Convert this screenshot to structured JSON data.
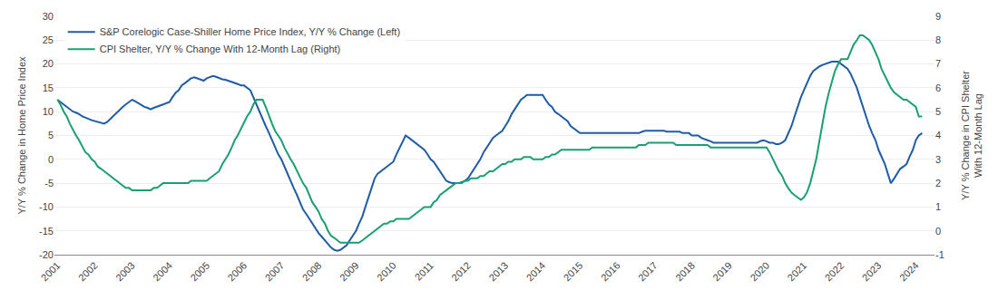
{
  "chart_data": {
    "type": "line",
    "ylabel": "Y/Y % Change in Home Price Index",
    "y2label": "Y/Y % Change in CPI Shelter\nWith 12-Month Lag",
    "x": [
      2001.0,
      2001.08,
      2001.17,
      2001.25,
      2001.33,
      2001.42,
      2001.5,
      2001.58,
      2001.67,
      2001.75,
      2001.83,
      2001.92,
      2002.0,
      2002.08,
      2002.17,
      2002.25,
      2002.33,
      2002.42,
      2002.5,
      2002.58,
      2002.67,
      2002.75,
      2002.83,
      2002.92,
      2003.0,
      2003.08,
      2003.17,
      2003.25,
      2003.33,
      2003.42,
      2003.5,
      2003.58,
      2003.67,
      2003.75,
      2003.83,
      2003.92,
      2004.0,
      2004.08,
      2004.17,
      2004.25,
      2004.33,
      2004.42,
      2004.5,
      2004.58,
      2004.67,
      2004.75,
      2004.83,
      2004.92,
      2005.0,
      2005.08,
      2005.17,
      2005.25,
      2005.33,
      2005.42,
      2005.5,
      2005.58,
      2005.67,
      2005.75,
      2005.83,
      2005.92,
      2006.0,
      2006.08,
      2006.17,
      2006.25,
      2006.33,
      2006.42,
      2006.5,
      2006.58,
      2006.67,
      2006.75,
      2006.83,
      2006.92,
      2007.0,
      2007.08,
      2007.17,
      2007.25,
      2007.33,
      2007.42,
      2007.5,
      2007.58,
      2007.67,
      2007.75,
      2007.83,
      2007.92,
      2008.0,
      2008.08,
      2008.17,
      2008.25,
      2008.33,
      2008.42,
      2008.5,
      2008.58,
      2008.67,
      2008.75,
      2008.83,
      2008.92,
      2009.0,
      2009.08,
      2009.17,
      2009.25,
      2009.33,
      2009.42,
      2009.5,
      2009.58,
      2009.67,
      2009.75,
      2009.83,
      2009.92,
      2010.0,
      2010.08,
      2010.17,
      2010.25,
      2010.33,
      2010.42,
      2010.5,
      2010.58,
      2010.67,
      2010.75,
      2010.83,
      2010.92,
      2011.0,
      2011.08,
      2011.17,
      2011.25,
      2011.33,
      2011.42,
      2011.5,
      2011.58,
      2011.67,
      2011.75,
      2011.83,
      2011.92,
      2012.0,
      2012.08,
      2012.17,
      2012.25,
      2012.33,
      2012.42,
      2012.5,
      2012.58,
      2012.67,
      2012.75,
      2012.83,
      2012.92,
      2013.0,
      2013.08,
      2013.17,
      2013.25,
      2013.33,
      2013.42,
      2013.5,
      2013.58,
      2013.67,
      2013.75,
      2013.83,
      2013.92,
      2014.0,
      2014.08,
      2014.17,
      2014.25,
      2014.33,
      2014.42,
      2014.5,
      2014.58,
      2014.67,
      2014.75,
      2014.83,
      2014.92,
      2015.0,
      2015.08,
      2015.17,
      2015.25,
      2015.33,
      2015.42,
      2015.5,
      2015.58,
      2015.67,
      2015.75,
      2015.83,
      2015.92,
      2016.0,
      2016.08,
      2016.17,
      2016.25,
      2016.33,
      2016.42,
      2016.5,
      2016.58,
      2016.67,
      2016.75,
      2016.83,
      2016.92,
      2017.0,
      2017.08,
      2017.17,
      2017.25,
      2017.33,
      2017.42,
      2017.5,
      2017.58,
      2017.67,
      2017.75,
      2017.83,
      2017.92,
      2018.0,
      2018.08,
      2018.17,
      2018.25,
      2018.33,
      2018.42,
      2018.5,
      2018.58,
      2018.67,
      2018.75,
      2018.83,
      2018.92,
      2019.0,
      2019.08,
      2019.17,
      2019.25,
      2019.33,
      2019.42,
      2019.5,
      2019.58,
      2019.67,
      2019.75,
      2019.83,
      2019.92,
      2020.0,
      2020.08,
      2020.17,
      2020.25,
      2020.33,
      2020.42,
      2020.5,
      2020.58,
      2020.67,
      2020.75,
      2020.83,
      2020.92,
      2021.0,
      2021.08,
      2021.17,
      2021.25,
      2021.33,
      2021.42,
      2021.5,
      2021.58,
      2021.67,
      2021.75,
      2021.83,
      2021.92,
      2022.0,
      2022.08,
      2022.17,
      2022.25,
      2022.33,
      2022.42,
      2022.5,
      2022.58,
      2022.67,
      2022.75,
      2022.83,
      2022.92,
      2023.0,
      2023.08,
      2023.17,
      2023.25,
      2023.33,
      2023.42,
      2023.5,
      2023.58,
      2023.67,
      2023.75,
      2023.83,
      2023.92,
      2024.0,
      2024.08,
      2024.17
    ],
    "series": [
      {
        "name": "S&P Corelogic Case-Shiller Home Price Index, Y/Y % Change (Left)",
        "color": "#1F5CA8",
        "axis": "y",
        "values": [
          12.5,
          12.0,
          11.5,
          11.0,
          10.5,
          10.0,
          9.8,
          9.5,
          9.0,
          8.8,
          8.5,
          8.2,
          8.0,
          7.8,
          7.6,
          7.5,
          7.8,
          8.5,
          9.0,
          9.8,
          10.5,
          11.0,
          11.5,
          12.0,
          12.5,
          12.2,
          11.8,
          11.5,
          11.0,
          10.8,
          10.5,
          10.8,
          11.0,
          11.2,
          11.5,
          11.8,
          12.0,
          13.0,
          14.0,
          14.5,
          15.5,
          16.0,
          16.5,
          17.0,
          17.2,
          17.0,
          16.8,
          16.5,
          17.0,
          17.2,
          17.5,
          17.3,
          17.0,
          16.8,
          16.7,
          16.5,
          16.3,
          16.0,
          15.8,
          15.5,
          15.5,
          15.0,
          14.5,
          13.0,
          11.5,
          10.0,
          8.5,
          7.0,
          5.5,
          4.0,
          2.5,
          1.0,
          0.0,
          -1.5,
          -3.0,
          -4.5,
          -6.0,
          -7.5,
          -9.0,
          -10.5,
          -11.5,
          -12.5,
          -13.5,
          -14.5,
          -15.5,
          -16.2,
          -17.0,
          -17.8,
          -18.5,
          -19.0,
          -19.2,
          -19.0,
          -18.5,
          -18.0,
          -17.0,
          -16.0,
          -15.0,
          -13.5,
          -12.0,
          -10.0,
          -8.0,
          -6.0,
          -4.0,
          -3.0,
          -2.5,
          -2.0,
          -1.5,
          -1.0,
          -0.5,
          1.0,
          2.5,
          4.0,
          5.0,
          4.5,
          4.0,
          3.5,
          3.0,
          2.5,
          2.0,
          1.0,
          0.0,
          -0.5,
          -1.5,
          -2.5,
          -3.5,
          -4.5,
          -4.8,
          -5.0,
          -5.0,
          -5.0,
          -4.8,
          -4.5,
          -4.0,
          -3.0,
          -2.0,
          -1.0,
          0.0,
          1.5,
          2.5,
          3.5,
          4.5,
          5.0,
          5.5,
          6.0,
          7.0,
          8.0,
          9.5,
          10.5,
          11.5,
          12.5,
          13.0,
          13.5,
          13.5,
          13.5,
          13.5,
          13.5,
          13.5,
          12.5,
          11.5,
          11.0,
          10.0,
          9.5,
          9.0,
          8.5,
          8.0,
          7.0,
          6.5,
          6.0,
          5.5,
          5.5,
          5.5,
          5.5,
          5.5,
          5.5,
          5.5,
          5.5,
          5.5,
          5.5,
          5.5,
          5.5,
          5.5,
          5.5,
          5.5,
          5.5,
          5.5,
          5.5,
          5.5,
          5.5,
          5.8,
          6.0,
          6.0,
          6.0,
          6.0,
          6.0,
          6.0,
          6.0,
          5.8,
          5.8,
          5.8,
          5.8,
          5.8,
          5.5,
          5.5,
          5.5,
          5.0,
          5.0,
          5.0,
          4.5,
          4.2,
          4.0,
          3.8,
          3.5,
          3.5,
          3.5,
          3.5,
          3.5,
          3.5,
          3.5,
          3.5,
          3.5,
          3.5,
          3.5,
          3.5,
          3.5,
          3.5,
          3.5,
          3.8,
          4.0,
          3.8,
          3.5,
          3.5,
          3.2,
          3.2,
          3.5,
          4.0,
          5.5,
          7.0,
          9.0,
          11.0,
          13.0,
          14.5,
          16.0,
          17.5,
          18.5,
          19.0,
          19.5,
          19.8,
          20.0,
          20.2,
          20.5,
          20.5,
          20.5,
          20.0,
          19.5,
          19.0,
          18.0,
          16.5,
          15.0,
          13.0,
          11.0,
          9.0,
          7.0,
          5.5,
          4.0,
          2.0,
          0.5,
          -1.0,
          -3.0,
          -5.0,
          -4.0,
          -3.0,
          -2.0,
          -1.5,
          -1.0,
          0.5,
          2.0,
          4.0,
          5.0,
          5.5
        ]
      },
      {
        "name": "CPI Shelter, Y/Y % Change With 12-Month Lag (Right)",
        "color": "#1A9E72",
        "axis": "y2",
        "values": [
          5.5,
          5.3,
          5.0,
          4.8,
          4.5,
          4.2,
          4.0,
          3.8,
          3.5,
          3.3,
          3.2,
          3.0,
          2.9,
          2.7,
          2.6,
          2.5,
          2.4,
          2.3,
          2.2,
          2.1,
          2.0,
          1.9,
          1.8,
          1.8,
          1.7,
          1.7,
          1.7,
          1.7,
          1.7,
          1.7,
          1.7,
          1.8,
          1.8,
          1.9,
          2.0,
          2.0,
          2.0,
          2.0,
          2.0,
          2.0,
          2.0,
          2.0,
          2.0,
          2.1,
          2.1,
          2.1,
          2.1,
          2.1,
          2.1,
          2.2,
          2.3,
          2.4,
          2.5,
          2.8,
          3.0,
          3.2,
          3.5,
          3.8,
          4.0,
          4.3,
          4.5,
          4.8,
          5.0,
          5.3,
          5.5,
          5.5,
          5.5,
          5.2,
          4.8,
          4.5,
          4.2,
          4.0,
          3.8,
          3.5,
          3.2,
          3.0,
          2.8,
          2.5,
          2.3,
          2.0,
          1.8,
          1.5,
          1.2,
          1.0,
          0.8,
          0.5,
          0.3,
          0.0,
          -0.2,
          -0.3,
          -0.4,
          -0.5,
          -0.5,
          -0.5,
          -0.5,
          -0.5,
          -0.5,
          -0.5,
          -0.4,
          -0.3,
          -0.2,
          -0.1,
          0.0,
          0.1,
          0.2,
          0.3,
          0.3,
          0.4,
          0.4,
          0.5,
          0.5,
          0.5,
          0.5,
          0.5,
          0.6,
          0.7,
          0.8,
          0.9,
          1.0,
          1.0,
          1.0,
          1.2,
          1.3,
          1.5,
          1.6,
          1.7,
          1.8,
          1.9,
          2.0,
          2.0,
          2.0,
          2.1,
          2.1,
          2.2,
          2.2,
          2.2,
          2.3,
          2.3,
          2.4,
          2.5,
          2.5,
          2.6,
          2.7,
          2.8,
          2.8,
          2.9,
          2.9,
          3.0,
          3.0,
          3.0,
          3.1,
          3.1,
          3.1,
          3.0,
          3.0,
          3.0,
          3.0,
          3.1,
          3.1,
          3.2,
          3.2,
          3.3,
          3.4,
          3.4,
          3.4,
          3.4,
          3.4,
          3.4,
          3.4,
          3.4,
          3.4,
          3.4,
          3.5,
          3.5,
          3.5,
          3.5,
          3.5,
          3.5,
          3.5,
          3.5,
          3.5,
          3.5,
          3.5,
          3.5,
          3.5,
          3.5,
          3.5,
          3.6,
          3.6,
          3.6,
          3.7,
          3.7,
          3.7,
          3.7,
          3.7,
          3.7,
          3.7,
          3.7,
          3.7,
          3.6,
          3.6,
          3.6,
          3.6,
          3.6,
          3.6,
          3.6,
          3.6,
          3.6,
          3.6,
          3.6,
          3.5,
          3.5,
          3.5,
          3.5,
          3.5,
          3.5,
          3.5,
          3.5,
          3.5,
          3.5,
          3.5,
          3.5,
          3.5,
          3.5,
          3.5,
          3.5,
          3.5,
          3.5,
          3.5,
          3.3,
          3.0,
          2.8,
          2.5,
          2.3,
          2.0,
          1.8,
          1.6,
          1.5,
          1.4,
          1.3,
          1.4,
          1.6,
          2.0,
          2.5,
          3.0,
          3.8,
          4.5,
          5.2,
          5.8,
          6.3,
          6.7,
          7.0,
          7.2,
          7.2,
          7.2,
          7.5,
          7.8,
          8.0,
          8.2,
          8.2,
          8.1,
          8.0,
          7.8,
          7.5,
          7.2,
          6.8,
          6.5,
          6.2,
          6.0,
          5.8,
          5.7,
          5.6,
          5.5,
          5.5,
          5.4,
          5.3,
          5.2,
          4.8,
          4.8
        ]
      }
    ],
    "xlim": [
      2000.92,
      2024.5
    ],
    "xticks": [
      2001,
      2002,
      2003,
      2004,
      2005,
      2006,
      2007,
      2008,
      2009,
      2010,
      2011,
      2012,
      2013,
      2014,
      2015,
      2016,
      2017,
      2018,
      2019,
      2020,
      2021,
      2022,
      2023,
      2024
    ],
    "ylim": [
      -20,
      30
    ],
    "yticks": [
      -20,
      -15,
      -10,
      -5,
      0,
      5,
      10,
      15,
      20,
      25,
      30
    ],
    "y2lim": [
      -1,
      9
    ],
    "y2ticks": [
      -1,
      0,
      1,
      2,
      3,
      4,
      5,
      6,
      7,
      8,
      9
    ],
    "grid": true,
    "legend": "upper left"
  }
}
